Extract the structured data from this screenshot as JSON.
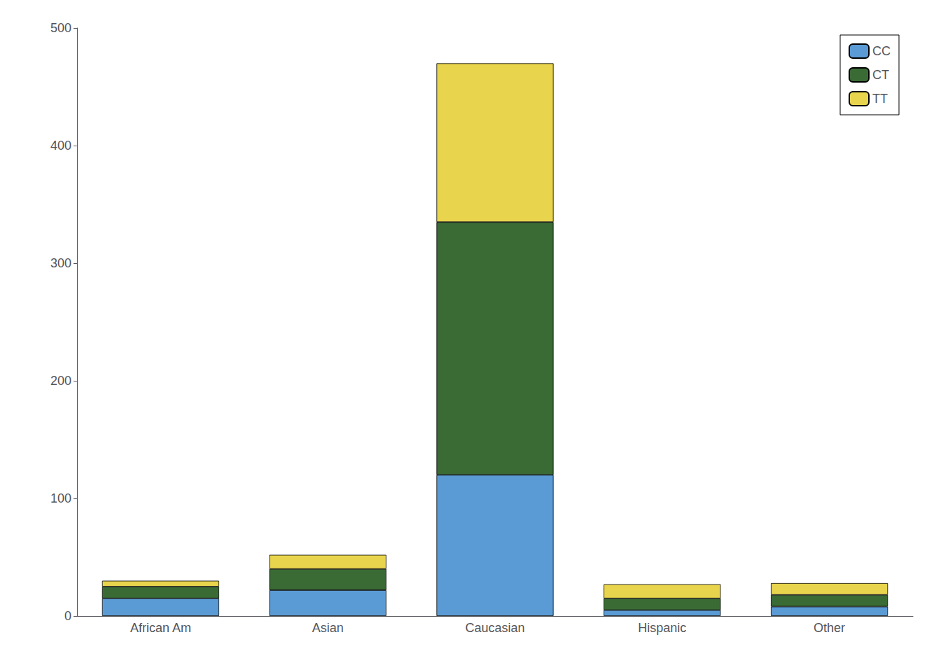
{
  "chart_data": {
    "type": "bar",
    "categories": [
      "African Am",
      "Asian",
      "Caucasian",
      "Hispanic",
      "Other"
    ],
    "series": [
      {
        "name": "CC",
        "color": "#5B9BD5",
        "values": [
          15,
          22,
          120,
          5,
          8
        ]
      },
      {
        "name": "CT",
        "color": "#3A6B35",
        "values": [
          10,
          18,
          215,
          10,
          10
        ]
      },
      {
        "name": "TT",
        "color": "#E8D44D",
        "values": [
          5,
          12,
          135,
          12,
          10
        ]
      }
    ],
    "stacked": true,
    "ylim": [
      0,
      500
    ],
    "yticks": [
      0,
      100,
      200,
      300,
      400,
      500
    ],
    "grid": false,
    "legend": "upper right"
  }
}
